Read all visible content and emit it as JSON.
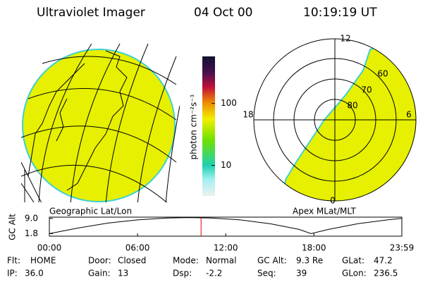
{
  "header": {
    "instrument": "Ultraviolet Imager",
    "date": "04 Oct 00",
    "time": "10:19:19 UT"
  },
  "geo_panel": {
    "label": "Geographic Lat/Lon"
  },
  "polar_panel": {
    "label": "Apex MLat/MLT",
    "mlt_labels": [
      "12",
      "18",
      "6",
      "0"
    ],
    "lat_labels": [
      "80",
      "70",
      "60"
    ]
  },
  "colorbar": {
    "unit": "photon cm⁻²s⁻¹",
    "log": true,
    "lim": [
      3.2,
      575
    ],
    "ticks": [
      10,
      100
    ]
  },
  "altitude": {
    "ylabel": "GC Alt",
    "ylim": [
      0.6,
      9.6
    ],
    "yticks": [
      {
        "value": 9,
        "label": "9.0"
      },
      1.8
    ],
    "xlim": [
      0,
      23.983
    ],
    "xticks": [
      {
        "value": 0,
        "label": "00:00"
      },
      {
        "value": 6,
        "label": "06:00"
      },
      {
        "value": 12,
        "label": "12:00"
      },
      {
        "value": 18,
        "label": "18:00"
      },
      {
        "value": 23.983,
        "label": "23:59"
      }
    ],
    "x": [
      0,
      2,
      4,
      6,
      8,
      9.6,
      11,
      13,
      15,
      17,
      17.8,
      19,
      21,
      23,
      23.983
    ],
    "values": [
      1.8,
      4.5,
      6.8,
      8.3,
      9.2,
      9.4,
      9.2,
      8.3,
      6.5,
      3.8,
      1.8,
      3.8,
      6.5,
      8.3,
      9.0
    ],
    "marker_x": 10.322,
    "marker_color": "#e00000"
  },
  "info": [
    [
      {
        "label": "Flt:",
        "value": "HOME"
      },
      {
        "label": "Door:",
        "value": "Closed"
      },
      {
        "label": "Mode:",
        "value": "Normal"
      },
      {
        "label": "GC Alt:",
        "value": "9.3 Re"
      },
      {
        "label": "GLat:",
        "value": "47.2"
      }
    ],
    [
      {
        "label": "IP:",
        "value": "36.0"
      },
      {
        "label": "Gain:",
        "value": "13"
      },
      {
        "label": "Dsp:",
        "value": "-2.2"
      },
      {
        "label": "Seq:",
        "value": "39"
      },
      {
        "label": "GLon:",
        "value": "236.5"
      }
    ]
  ]
}
